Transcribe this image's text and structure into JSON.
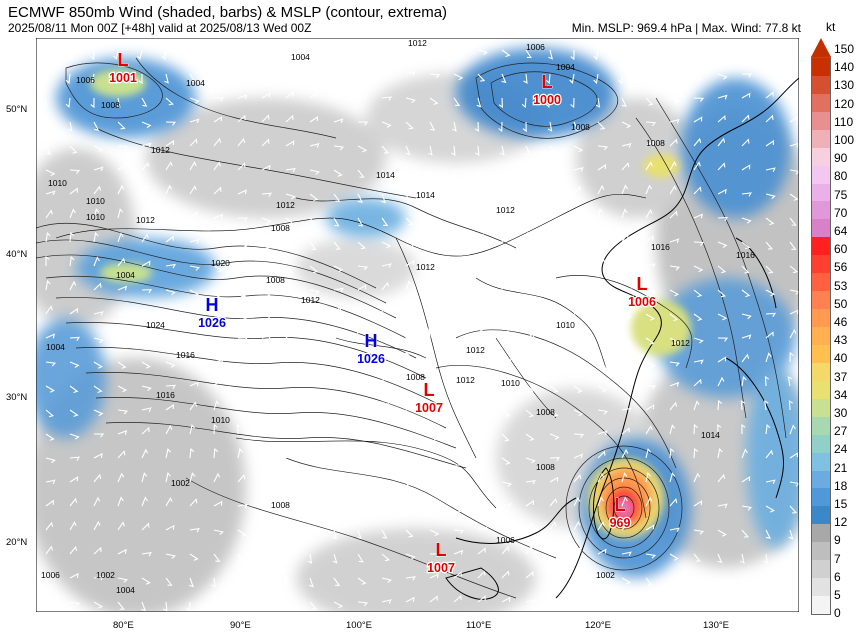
{
  "header": {
    "title": "ECMWF 850mb Wind (shaded, barbs) & MSLP (contour, extrema)",
    "subtitle": "2025/08/11 Mon 00Z [+48h] valid at 2025/08/13 Wed 00Z",
    "stats": "Min. MSLP: 969.4 hPa | Max. Wind: 77.8 kt"
  },
  "colorbar": {
    "unit": "kt",
    "levels": [
      "150",
      "140",
      "130",
      "120",
      "110",
      "100",
      "90",
      "80",
      "75",
      "70",
      "64",
      "60",
      "56",
      "53",
      "50",
      "46",
      "43",
      "40",
      "37",
      "34",
      "30",
      "27",
      "24",
      "21",
      "18",
      "15",
      "12",
      "9",
      "7",
      "6",
      "5",
      "0"
    ],
    "colors": [
      "#c83000",
      "#d55030",
      "#e07060",
      "#e89090",
      "#f0b0b8",
      "#f7d0e0",
      "#f2c8f0",
      "#eab0e8",
      "#e098d8",
      "#d880c8",
      "#ff2020",
      "#ff4030",
      "#ff6040",
      "#ff8050",
      "#ff9a50",
      "#ffb050",
      "#ffc050",
      "#f5d86a",
      "#e8e070",
      "#c8e090",
      "#a8d8b0",
      "#90d0c8",
      "#80c0e0",
      "#6aace0",
      "#5098d8",
      "#3a88c8",
      "#a8a8a8",
      "#bebebe",
      "#d0d0d0",
      "#e2e2e2",
      "#f4f4f4"
    ]
  },
  "axes": {
    "lat_labels": [
      "50°N",
      "40°N",
      "30°N",
      "20°N"
    ],
    "lon_labels": [
      "80°E",
      "90°E",
      "100°E",
      "110°E",
      "120°E",
      "130°E"
    ]
  },
  "pressure_centers": [
    {
      "type": "L",
      "value": "1001",
      "color": "#e00000"
    },
    {
      "type": "L",
      "value": "1000",
      "color": "#e00000"
    },
    {
      "type": "H",
      "value": "1026",
      "color": "#0000e0"
    },
    {
      "type": "H",
      "value": "1026",
      "color": "#0000e0"
    },
    {
      "type": "L",
      "value": "1006",
      "color": "#e00000"
    },
    {
      "type": "L",
      "value": "1007",
      "color": "#e00000"
    },
    {
      "type": "L",
      "value": "969",
      "color": "#e00000"
    },
    {
      "type": "L",
      "value": "1007",
      "color": "#e00000"
    }
  ],
  "isobar_labels": [
    "1006",
    "1008",
    "1004",
    "1012",
    "1006",
    "1004",
    "1008",
    "1008",
    "1010",
    "1012",
    "1014",
    "1012",
    "1010",
    "1016",
    "1012",
    "1008",
    "1010",
    "1012",
    "1014",
    "1004",
    "1020",
    "1024",
    "1016",
    "1012",
    "1010",
    "1012",
    "1008",
    "1012",
    "1010",
    "1008",
    "1002",
    "1004",
    "1008",
    "1006",
    "1002",
    "1004",
    "1016",
    "1012",
    "1014",
    "1008",
    "1010",
    "1008",
    "1012",
    "1016",
    "1004",
    "1006",
    "1002"
  ]
}
